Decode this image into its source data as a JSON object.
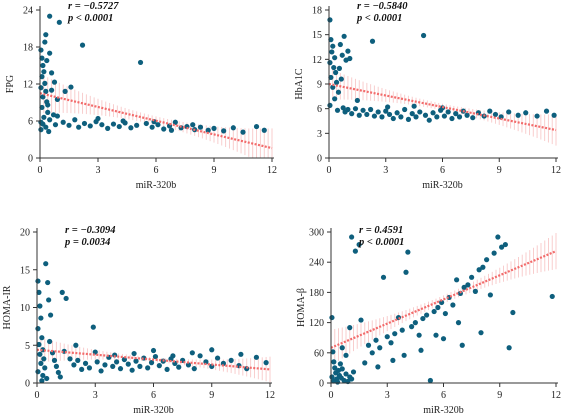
{
  "chart_data": [
    {
      "type": "scatter",
      "panel": "top-left",
      "xlabel": "miR-320b",
      "ylabel": "FPG",
      "xlim": [
        0,
        12
      ],
      "ylim": [
        0,
        24
      ],
      "xticks": [
        0,
        3,
        6,
        9,
        12
      ],
      "yticks": [
        0,
        6,
        12,
        18,
        24
      ],
      "stat_r": "r = −0.5727",
      "stat_p": "p < 0.0001",
      "fit": {
        "x0": 0,
        "y0": 10.5,
        "x1": 12,
        "y1": 1.6
      },
      "ci_band": {
        "half_width_at_ends": 3.2,
        "half_width_at_center": 0.7
      },
      "points": [
        [
          0.05,
          17.5
        ],
        [
          0.1,
          16.2
        ],
        [
          0.15,
          15.0
        ],
        [
          0.2,
          14.0
        ],
        [
          0.1,
          13.2
        ],
        [
          0.25,
          12.1
        ],
        [
          0.05,
          11.4
        ],
        [
          0.3,
          10.8
        ],
        [
          0.15,
          9.9
        ],
        [
          0.35,
          9.1
        ],
        [
          0.1,
          8.2
        ],
        [
          0.4,
          7.4
        ],
        [
          0.2,
          6.6
        ],
        [
          0.05,
          5.8
        ],
        [
          0.3,
          5.0
        ],
        [
          0.45,
          4.3
        ],
        [
          0.25,
          18.8
        ],
        [
          0.5,
          17.0
        ],
        [
          0.35,
          15.8
        ],
        [
          0.6,
          13.8
        ],
        [
          0.05,
          4.6
        ],
        [
          0.15,
          5.5
        ],
        [
          0.5,
          6.2
        ],
        [
          0.7,
          7.0
        ],
        [
          0.8,
          5.4
        ],
        [
          0.4,
          8.6
        ],
        [
          0.6,
          11.0
        ],
        [
          0.75,
          12.3
        ],
        [
          0.3,
          20.0
        ],
        [
          0.5,
          23.0
        ],
        [
          1.0,
          22.0
        ],
        [
          0.9,
          6.8
        ],
        [
          1.2,
          5.8
        ],
        [
          1.5,
          5.3
        ],
        [
          1.8,
          6.2
        ],
        [
          2.0,
          5.0
        ],
        [
          2.3,
          5.6
        ],
        [
          2.6,
          5.2
        ],
        [
          2.9,
          5.9
        ],
        [
          3.2,
          5.4
        ],
        [
          3.5,
          4.8
        ],
        [
          3.8,
          5.5
        ],
        [
          4.1,
          5.1
        ],
        [
          4.4,
          5.7
        ],
        [
          4.7,
          4.9
        ],
        [
          5.0,
          5.3
        ],
        [
          5.2,
          15.5
        ],
        [
          5.5,
          5.6
        ],
        [
          5.8,
          5.0
        ],
        [
          6.1,
          5.4
        ],
        [
          6.4,
          4.7
        ],
        [
          6.7,
          5.2
        ],
        [
          7.0,
          5.8
        ],
        [
          7.3,
          4.9
        ],
        [
          7.6,
          5.1
        ],
        [
          8.0,
          4.6
        ],
        [
          8.3,
          5.0
        ],
        [
          8.7,
          4.5
        ],
        [
          9.0,
          4.8
        ],
        [
          9.5,
          4.4
        ],
        [
          10.0,
          4.9
        ],
        [
          10.5,
          4.2
        ],
        [
          11.2,
          5.1
        ],
        [
          11.6,
          4.5
        ],
        [
          1.3,
          10.8
        ],
        [
          2.2,
          18.3
        ],
        [
          1.6,
          11.5
        ],
        [
          0.9,
          9.5
        ],
        [
          3.0,
          6.4
        ],
        [
          4.3,
          6.0
        ],
        [
          5.9,
          5.9
        ],
        [
          6.8,
          4.5
        ],
        [
          7.9,
          5.4
        ]
      ]
    },
    {
      "type": "scatter",
      "panel": "top-right",
      "xlabel": "miR-320b",
      "ylabel": "HbA1C",
      "xlim": [
        0,
        12
      ],
      "ylim": [
        0,
        18
      ],
      "xticks": [
        0,
        3,
        6,
        9,
        12
      ],
      "yticks": [
        0,
        3,
        6,
        9,
        12,
        15,
        18
      ],
      "stat_r": "r = −0.5840",
      "stat_p": "p < 0.0001",
      "fit": {
        "x0": 0,
        "y0": 9.0,
        "x1": 12,
        "y1": 3.4
      },
      "ci_band": {
        "half_width_at_ends": 1.9,
        "half_width_at_center": 0.4
      },
      "points": [
        [
          0.05,
          16.8
        ],
        [
          0.1,
          14.4
        ],
        [
          0.2,
          13.6
        ],
        [
          0.15,
          12.9
        ],
        [
          0.3,
          12.2
        ],
        [
          0.05,
          11.6
        ],
        [
          0.25,
          11.0
        ],
        [
          0.35,
          10.4
        ],
        [
          0.1,
          9.8
        ],
        [
          0.4,
          9.2
        ],
        [
          0.2,
          8.6
        ],
        [
          0.5,
          8.0
        ],
        [
          0.3,
          7.2
        ],
        [
          0.05,
          6.4
        ],
        [
          0.45,
          5.8
        ],
        [
          0.6,
          13.8
        ],
        [
          0.7,
          12.5
        ],
        [
          0.8,
          14.8
        ],
        [
          0.9,
          11.9
        ],
        [
          1.0,
          13.0
        ],
        [
          1.1,
          12.1
        ],
        [
          0.55,
          10.9
        ],
        [
          0.65,
          9.6
        ],
        [
          0.75,
          6.1
        ],
        [
          0.85,
          5.6
        ],
        [
          1.0,
          5.9
        ],
        [
          1.2,
          5.4
        ],
        [
          1.4,
          6.0
        ],
        [
          1.6,
          5.2
        ],
        [
          1.8,
          5.8
        ],
        [
          2.0,
          5.3
        ],
        [
          2.2,
          5.9
        ],
        [
          2.4,
          5.1
        ],
        [
          2.6,
          5.6
        ],
        [
          2.8,
          5.0
        ],
        [
          3.0,
          5.7
        ],
        [
          3.2,
          5.3
        ],
        [
          3.4,
          4.8
        ],
        [
          3.6,
          5.5
        ],
        [
          3.8,
          5.0
        ],
        [
          4.0,
          5.9
        ],
        [
          4.2,
          4.7
        ],
        [
          4.4,
          5.4
        ],
        [
          4.6,
          5.0
        ],
        [
          4.8,
          5.6
        ],
        [
          5.0,
          14.9
        ],
        [
          5.1,
          5.2
        ],
        [
          5.3,
          4.6
        ],
        [
          5.5,
          5.5
        ],
        [
          5.7,
          5.0
        ],
        [
          5.9,
          5.8
        ],
        [
          6.1,
          5.1
        ],
        [
          6.3,
          5.6
        ],
        [
          6.5,
          4.8
        ],
        [
          6.7,
          5.4
        ],
        [
          6.9,
          5.0
        ],
        [
          7.1,
          5.7
        ],
        [
          7.3,
          5.2
        ],
        [
          7.6,
          4.9
        ],
        [
          7.9,
          5.5
        ],
        [
          8.2,
          5.1
        ],
        [
          8.5,
          5.7
        ],
        [
          8.8,
          5.3
        ],
        [
          9.1,
          5.0
        ],
        [
          9.5,
          5.6
        ],
        [
          10.0,
          5.2
        ],
        [
          10.4,
          5.5
        ],
        [
          11.0,
          5.1
        ],
        [
          11.5,
          5.7
        ],
        [
          11.9,
          5.2
        ],
        [
          2.3,
          14.2
        ],
        [
          1.5,
          7.0
        ],
        [
          3.1,
          6.2
        ],
        [
          4.5,
          6.3
        ],
        [
          6.0,
          6.1
        ]
      ]
    },
    {
      "type": "scatter",
      "panel": "bottom-left",
      "xlabel": "miR-320b",
      "ylabel": "HOMA-IR",
      "xlim": [
        0,
        12
      ],
      "ylim": [
        0,
        20
      ],
      "xticks": [
        0,
        3,
        6,
        9,
        12
      ],
      "yticks": [
        0,
        5,
        10,
        15,
        20
      ],
      "stat_r": "r = −0.3094",
      "stat_p": "p = 0.0034",
      "fit": {
        "x0": 0,
        "y0": 4.4,
        "x1": 12,
        "y1": 1.8
      },
      "ci_band": {
        "half_width_at_ends": 1.7,
        "half_width_at_center": 0.3
      },
      "points": [
        [
          0.05,
          13.5
        ],
        [
          0.1,
          12.0
        ],
        [
          0.15,
          10.2
        ],
        [
          0.2,
          8.6
        ],
        [
          0.05,
          7.2
        ],
        [
          0.25,
          6.0
        ],
        [
          0.1,
          5.1
        ],
        [
          0.3,
          4.4
        ],
        [
          0.15,
          3.8
        ],
        [
          0.35,
          3.2
        ],
        [
          0.2,
          2.6
        ],
        [
          0.4,
          2.0
        ],
        [
          0.05,
          1.5
        ],
        [
          0.3,
          1.0
        ],
        [
          0.5,
          0.6
        ],
        [
          0.25,
          0.3
        ],
        [
          0.45,
          15.8
        ],
        [
          0.55,
          13.3
        ],
        [
          0.6,
          11.0
        ],
        [
          0.7,
          9.0
        ],
        [
          0.65,
          5.5
        ],
        [
          0.8,
          4.0
        ],
        [
          0.9,
          3.0
        ],
        [
          1.0,
          2.2
        ],
        [
          1.1,
          1.4
        ],
        [
          1.2,
          0.8
        ],
        [
          1.3,
          12.0
        ],
        [
          1.5,
          11.2
        ],
        [
          1.7,
          3.2
        ],
        [
          1.9,
          2.4
        ],
        [
          2.1,
          3.0
        ],
        [
          2.3,
          1.8
        ],
        [
          2.5,
          2.6
        ],
        [
          2.7,
          2.0
        ],
        [
          2.9,
          7.4
        ],
        [
          3.1,
          2.8
        ],
        [
          3.3,
          1.6
        ],
        [
          3.5,
          2.4
        ],
        [
          3.7,
          3.4
        ],
        [
          3.9,
          2.2
        ],
        [
          4.1,
          2.8
        ],
        [
          4.3,
          1.9
        ],
        [
          4.5,
          3.1
        ],
        [
          4.7,
          2.5
        ],
        [
          4.9,
          1.7
        ],
        [
          5.1,
          2.9
        ],
        [
          5.3,
          2.2
        ],
        [
          5.5,
          3.3
        ],
        [
          5.7,
          2.0
        ],
        [
          5.9,
          2.7
        ],
        [
          6.1,
          3.5
        ],
        [
          6.3,
          2.3
        ],
        [
          6.5,
          2.9
        ],
        [
          6.7,
          1.8
        ],
        [
          6.9,
          3.2
        ],
        [
          7.1,
          2.6
        ],
        [
          7.3,
          2.1
        ],
        [
          7.5,
          3.0
        ],
        [
          7.8,
          2.4
        ],
        [
          8.1,
          1.9
        ],
        [
          8.4,
          3.6
        ],
        [
          8.7,
          2.8
        ],
        [
          9.0,
          2.2
        ],
        [
          9.3,
          3.3
        ],
        [
          9.6,
          2.6
        ],
        [
          10.0,
          3.0
        ],
        [
          10.4,
          2.3
        ],
        [
          10.8,
          1.9
        ],
        [
          11.3,
          3.4
        ],
        [
          11.8,
          2.7
        ],
        [
          1.4,
          4.2
        ],
        [
          2.0,
          5.0
        ],
        [
          3.0,
          4.1
        ],
        [
          4.0,
          3.7
        ],
        [
          5.0,
          3.9
        ],
        [
          6.0,
          4.3
        ],
        [
          7.0,
          3.6
        ],
        [
          8.0,
          4.0
        ],
        [
          9.0,
          4.4
        ],
        [
          10.5,
          3.8
        ]
      ]
    },
    {
      "type": "scatter",
      "panel": "bottom-right",
      "xlabel": "miR-320b",
      "ylabel": "HOMA-β",
      "xlim": [
        0,
        12
      ],
      "ylim": [
        0,
        300
      ],
      "xticks": [
        0,
        3,
        6,
        9,
        12
      ],
      "yticks": [
        0,
        60,
        120,
        180,
        240,
        300
      ],
      "stat_r": "r = 0.4591",
      "stat_p": "p < 0.0001",
      "fit": {
        "x0": 0,
        "y0": 70,
        "x1": 12,
        "y1": 262
      },
      "ci_band": {
        "half_width_at_ends": 36,
        "half_width_at_center": 8
      },
      "points": [
        [
          0.05,
          130
        ],
        [
          0.1,
          62
        ],
        [
          0.15,
          42
        ],
        [
          0.2,
          30
        ],
        [
          0.25,
          20
        ],
        [
          0.05,
          12
        ],
        [
          0.3,
          8
        ],
        [
          0.15,
          4
        ],
        [
          0.35,
          2
        ],
        [
          0.4,
          25
        ],
        [
          0.45,
          15
        ],
        [
          0.5,
          38
        ],
        [
          0.55,
          10
        ],
        [
          0.6,
          28
        ],
        [
          0.7,
          5
        ],
        [
          0.8,
          18
        ],
        [
          0.9,
          3
        ],
        [
          1.0,
          12
        ],
        [
          1.1,
          8
        ],
        [
          1.2,
          22
        ],
        [
          0.6,
          70
        ],
        [
          0.8,
          55
        ],
        [
          1.0,
          110
        ],
        [
          1.1,
          290
        ],
        [
          1.3,
          262
        ],
        [
          1.5,
          275
        ],
        [
          1.6,
          125
        ],
        [
          1.8,
          40
        ],
        [
          2.0,
          75
        ],
        [
          2.2,
          60
        ],
        [
          2.4,
          85
        ],
        [
          2.6,
          70
        ],
        [
          2.8,
          210
        ],
        [
          3.0,
          92
        ],
        [
          3.2,
          80
        ],
        [
          3.4,
          98
        ],
        [
          3.6,
          130
        ],
        [
          3.8,
          105
        ],
        [
          4.0,
          220
        ],
        [
          4.1,
          260
        ],
        [
          4.3,
          112
        ],
        [
          4.5,
          120
        ],
        [
          4.7,
          95
        ],
        [
          4.9,
          128
        ],
        [
          5.1,
          135
        ],
        [
          5.3,
          5
        ],
        [
          5.5,
          142
        ],
        [
          5.7,
          150
        ],
        [
          5.9,
          160
        ],
        [
          6.1,
          138
        ],
        [
          6.3,
          170
        ],
        [
          6.5,
          155
        ],
        [
          6.7,
          205
        ],
        [
          6.9,
          178
        ],
        [
          7.1,
          190
        ],
        [
          7.3,
          195
        ],
        [
          7.5,
          210
        ],
        [
          7.7,
          182
        ],
        [
          7.9,
          225
        ],
        [
          8.1,
          230
        ],
        [
          8.3,
          245
        ],
        [
          8.5,
          175
        ],
        [
          8.7,
          258
        ],
        [
          8.9,
          290
        ],
        [
          9.1,
          270
        ],
        [
          9.3,
          275
        ],
        [
          9.5,
          70
        ],
        [
          9.7,
          140
        ],
        [
          11.8,
          172
        ],
        [
          6.8,
          120
        ],
        [
          5.6,
          95
        ],
        [
          3.9,
          55
        ],
        [
          2.5,
          32
        ],
        [
          7.0,
          75
        ],
        [
          8.0,
          100
        ],
        [
          6.0,
          88
        ],
        [
          4.8,
          65
        ],
        [
          3.3,
          45
        ]
      ]
    }
  ]
}
